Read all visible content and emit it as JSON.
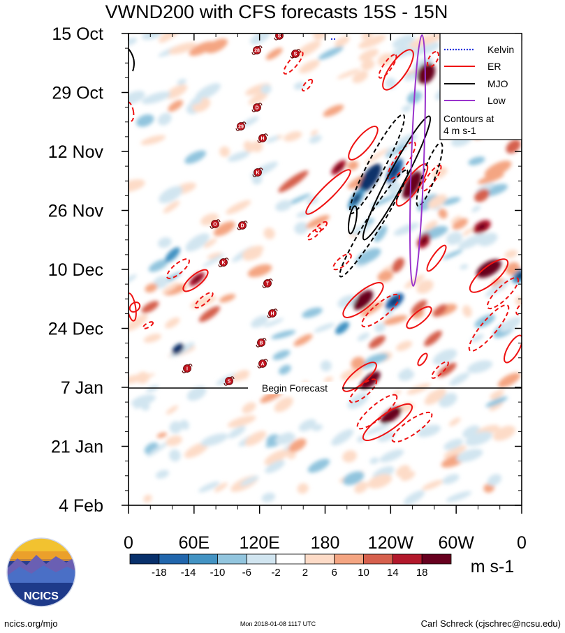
{
  "title": "VWND200 with CFS forecasts  15S - 15N",
  "chart_data": {
    "type": "heatmap",
    "title": "VWND200 with CFS forecasts  15S - 15N",
    "y_ticks": [
      "15 Oct",
      "29 Oct",
      "12 Nov",
      "26 Nov",
      "10 Dec",
      "24 Dec",
      "7 Jan",
      "21 Jan",
      "4 Feb"
    ],
    "x_ticks": [
      "0",
      "60E",
      "120E",
      "180",
      "120W",
      "60W",
      "0"
    ],
    "x_range": [
      0,
      360
    ],
    "y_range": [
      "15 Oct",
      "4 Feb"
    ],
    "colorbar": {
      "ticks": [
        "-18",
        "-14",
        "-10",
        "-6",
        "-2",
        "2",
        "6",
        "10",
        "14",
        "18"
      ],
      "units": "m s-1",
      "colors": [
        "#08306b",
        "#2166ac",
        "#4393c3",
        "#92c5de",
        "#d1e5f0",
        "#ffffff",
        "#fddbc7",
        "#f4a582",
        "#d6604d",
        "#b2182b",
        "#67001f"
      ]
    },
    "legend": {
      "position": "top-right",
      "entries": [
        {
          "name": "Kelvin",
          "color": "#2233dd",
          "style": "dotted"
        },
        {
          "name": "ER",
          "color": "#ee1111",
          "style": "solid"
        },
        {
          "name": "MJO",
          "color": "#000000",
          "style": "solid"
        },
        {
          "name": "Low",
          "color": "#9933cc",
          "style": "solid"
        }
      ],
      "note_line1": "Contours at",
      "note_line2": "4 m s-1"
    },
    "forecast_marker": {
      "date": "7 Jan",
      "label": "Begin Forecast"
    },
    "storm_labels": [
      "S",
      "28",
      "S",
      "D",
      "29",
      "H",
      "K",
      "O",
      "D",
      "K",
      "T",
      "H",
      "B",
      "A",
      "I",
      "S"
    ]
  },
  "footer": {
    "left": "ncics.org/mjo",
    "center": "Mon 2018-01-08 1117 UTC",
    "right": "Carl Schreck (cjschrec@ncsu.edu)",
    "logo_text": "NCICS"
  }
}
